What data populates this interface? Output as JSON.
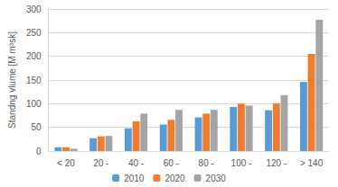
{
  "chart_data": {
    "type": "bar",
    "y_label": "Standng vlume [M m³sk]",
    "categories": [
      "< 20",
      "20 -",
      "40 -",
      "60 -",
      "80 -",
      "100 -",
      "120 -",
      "> 140"
    ],
    "series": [
      {
        "name": "2010",
        "color": "#5b9bd5",
        "values": [
          8,
          27,
          48,
          56,
          71,
          93,
          86,
          146
        ]
      },
      {
        "name": "2020",
        "color": "#ed7d31",
        "values": [
          8,
          31,
          63,
          66,
          79,
          100,
          101,
          205
        ]
      },
      {
        "name": "2030",
        "color": "#a5a5a5",
        "values": [
          5,
          32,
          79,
          87,
          87,
          96,
          118,
          277
        ]
      }
    ],
    "ylim": [
      0,
      300
    ],
    "yticks": [
      0,
      50,
      100,
      150,
      200,
      250,
      300
    ],
    "grid": true,
    "legend": "bottom"
  }
}
